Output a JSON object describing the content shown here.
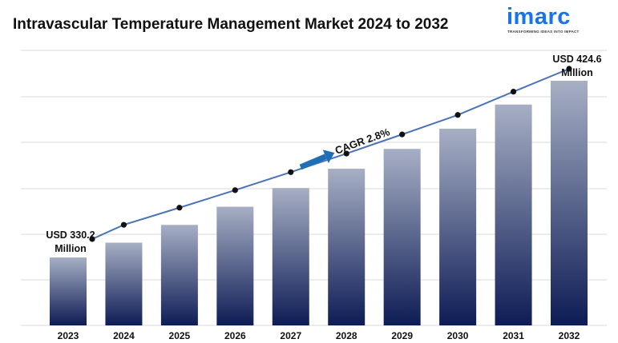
{
  "header": {
    "title": "Intravascular Temperature Management Market 2024 to 2032"
  },
  "logo": {
    "wordmark": "imarc",
    "tagline": "TRANSFORMING IDEAS INTO IMPACT"
  },
  "chart_data": {
    "type": "bar",
    "title": "Intravascular Temperature Management Market 2024 to 2032",
    "categories": [
      "2023",
      "2024",
      "2025",
      "2026",
      "2027",
      "2028",
      "2029",
      "2030",
      "2031",
      "2032"
    ],
    "values": [
      330.2,
      338.1,
      347.6,
      357.3,
      367.3,
      377.6,
      388.2,
      399.0,
      411.9,
      424.6
    ],
    "unit": "USD Million",
    "ylim": [
      290,
      436
    ],
    "grid": true,
    "data_labels": [
      {
        "category": "2023",
        "line1": "USD 330.2",
        "line2": "Million"
      },
      {
        "category": "2032",
        "line1": "USD 424.6",
        "line2": "Million"
      }
    ],
    "annotation": "CAGR 2.8%",
    "colors": {
      "bar_top": "#a7afc4",
      "bar_bottom": "#0d1c55",
      "trend_line": "#4a72b8",
      "trend_marker": "#111111",
      "arrow": "#1d6fb8",
      "grid": "#d9d9d9"
    }
  }
}
